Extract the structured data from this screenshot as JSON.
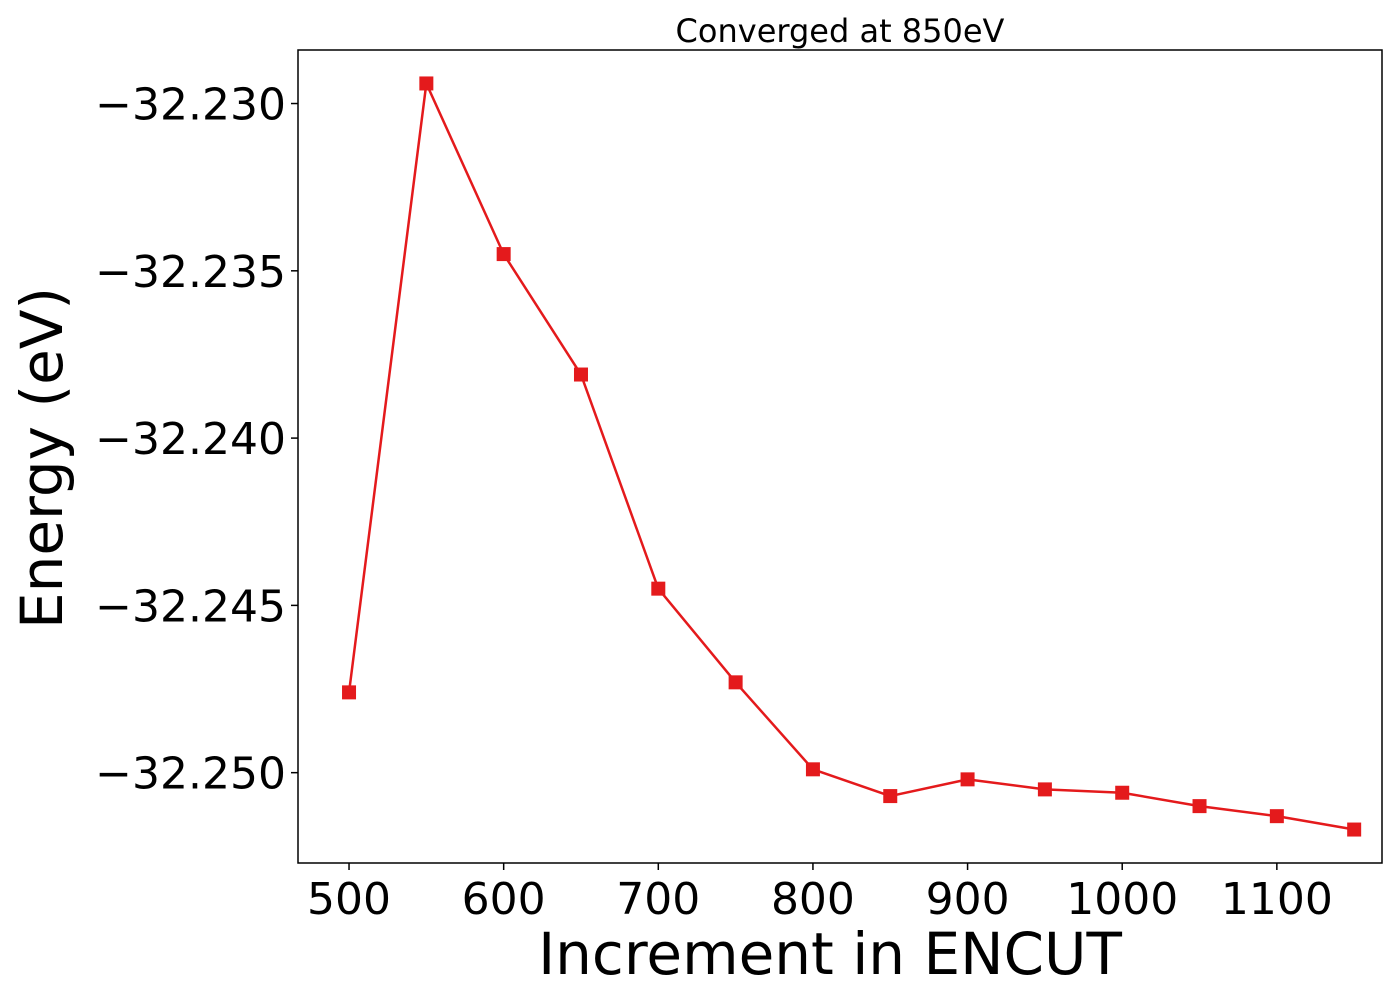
{
  "chart_data": {
    "type": "line",
    "title": "Converged at 850eV",
    "xlabel": "Increment in ENCUT",
    "ylabel": "Energy (eV)",
    "x_ticks": [
      500,
      600,
      700,
      800,
      900,
      1000,
      1100
    ],
    "x_tick_labels": [
      "500",
      "600",
      "700",
      "800",
      "900",
      "1000",
      "1100"
    ],
    "y_ticks": [
      -32.23,
      -32.235,
      -32.24,
      -32.245,
      -32.25
    ],
    "y_tick_labels": [
      "−32.230",
      "−32.235",
      "−32.240",
      "−32.245",
      "−32.250"
    ],
    "xlim": [
      467,
      1168
    ],
    "ylim": [
      -32.2527,
      -32.2284
    ],
    "grid": false,
    "series": [
      {
        "color": "#e41a1c",
        "marker": "square",
        "x": [
          500,
          550,
          600,
          650,
          700,
          750,
          800,
          850,
          900,
          950,
          1000,
          1050,
          1100,
          1150
        ],
        "y": [
          -32.2476,
          -32.2294,
          -32.2345,
          -32.2381,
          -32.2445,
          -32.2473,
          -32.2499,
          -32.2507,
          -32.2502,
          -32.2505,
          -32.2506,
          -32.251,
          -32.2513,
          -32.2517
        ]
      }
    ]
  }
}
